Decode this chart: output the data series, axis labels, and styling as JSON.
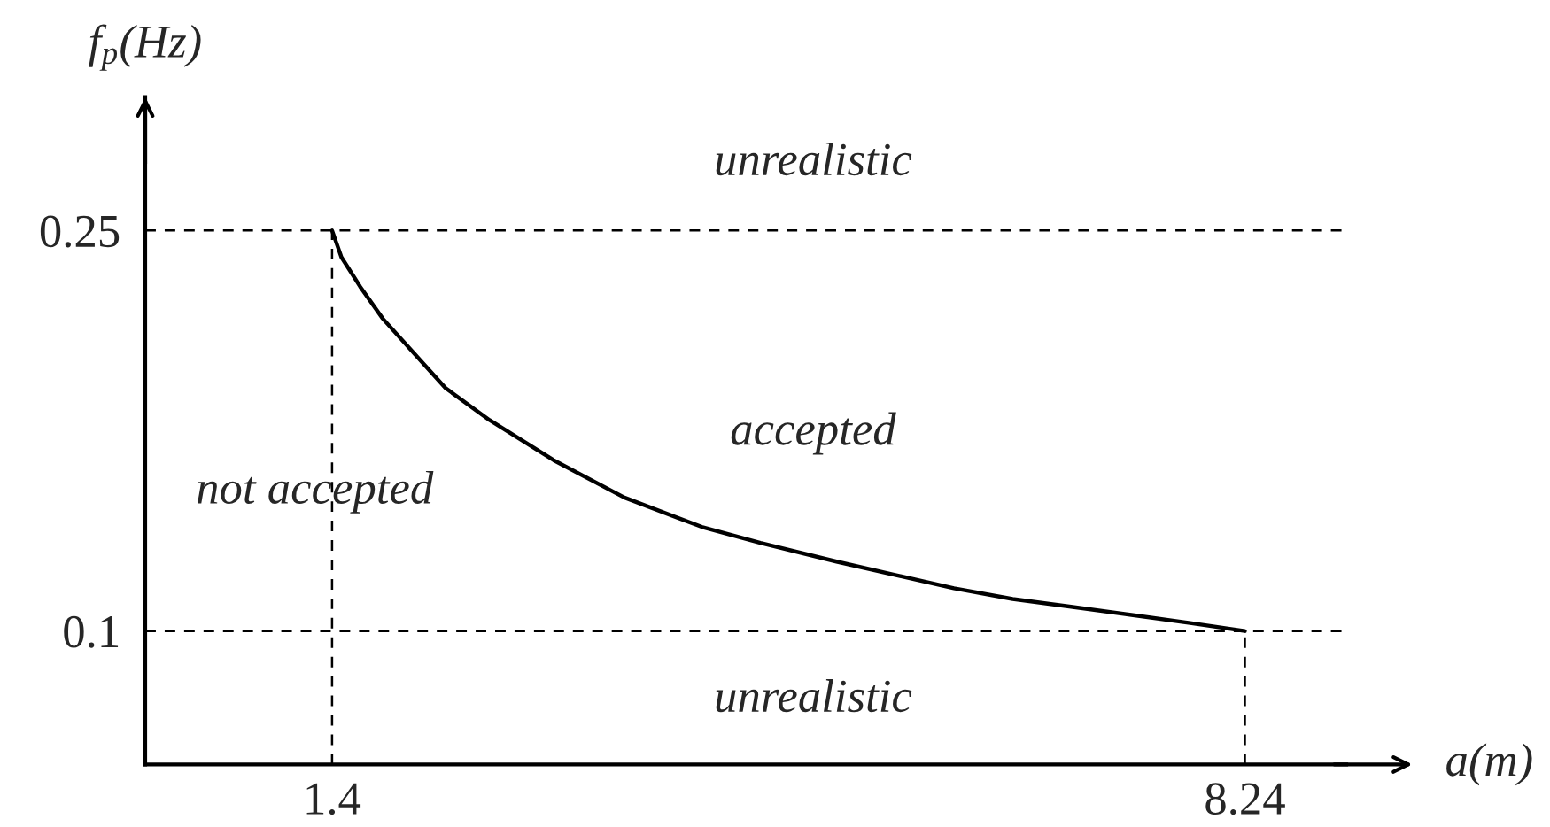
{
  "chart_data": {
    "type": "line",
    "xlabel": "a(m)",
    "ylabel": "f$_{p}$(Hz)",
    "series": [
      {
        "color": "#000000",
        "x": [
          1.4,
          1.47,
          1.61,
          1.78,
          2.05,
          2.25,
          2.58,
          3.06,
          3.59,
          4.17,
          4.61,
          5.18,
          5.62,
          6.06,
          6.5,
          6.95,
          7.39,
          7.83,
          8.24
        ],
        "values": [
          0.25,
          0.24,
          0.229,
          0.217,
          0.202,
          0.191,
          0.179,
          0.164,
          0.15,
          0.139,
          0.133,
          0.126,
          0.121,
          0.116,
          0.112,
          0.109,
          0.106,
          0.103,
          0.1
        ]
      }
    ],
    "xlim": [
      0,
      9
    ],
    "ylim": [
      0.05,
      0.3
    ],
    "xticks": [
      1.4,
      8.24
    ],
    "yticks": [
      0.1,
      0.25
    ],
    "ref_lines": [
      {
        "axis": "y",
        "value": 0.25,
        "color": "#000000",
        "line_style": "dashed"
      },
      {
        "axis": "y",
        "value": 0.1,
        "color": "#000000",
        "line_style": "dashed"
      },
      {
        "axis": "x",
        "value": 1.4,
        "color": "#000000",
        "line_style": "dashed"
      },
      {
        "axis": "x",
        "value": 8.24,
        "color": "#000000",
        "line_style": "dashed"
      }
    ],
    "annotations": [
      "unrealistic",
      "accepted",
      "not accepted",
      "unrealistic"
    ]
  }
}
